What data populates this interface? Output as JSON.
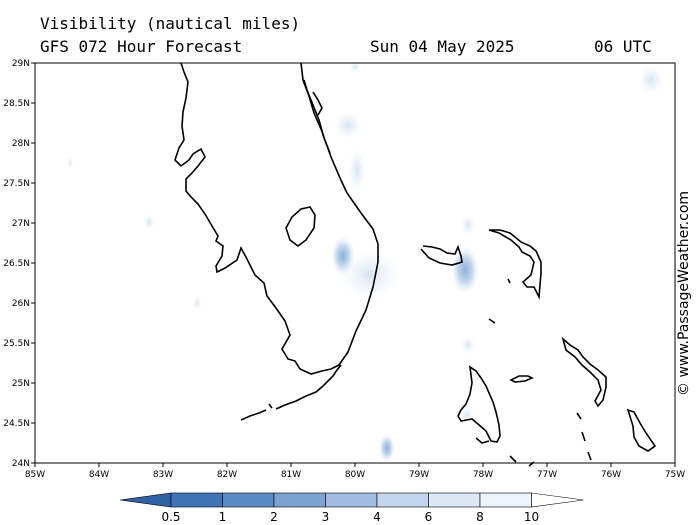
{
  "header": {
    "title": "Visibility (nautical miles)",
    "subtitle": "GFS 072 Hour Forecast",
    "date": "Sun 04 May 2025",
    "time": "06 UTC"
  },
  "credit": "© www.PassageWeather.com",
  "map": {
    "lon_range": [
      -85,
      -75
    ],
    "lat_range": [
      24,
      29
    ],
    "lon_ticks": [
      "85W",
      "84W",
      "83W",
      "82W",
      "81W",
      "80W",
      "79W",
      "78W",
      "77W",
      "76W",
      "75W"
    ],
    "lat_ticks": [
      "29N",
      "28.5N",
      "28N",
      "27.5N",
      "27N",
      "26.5N",
      "26N",
      "25.5N",
      "25N",
      "24.5N",
      "24N"
    ]
  },
  "colorbar": {
    "labels": [
      "0.5",
      "1",
      "2",
      "3",
      "4",
      "6",
      "8",
      "10"
    ],
    "colors": [
      "#3e74b6",
      "#5a8ac5",
      "#7ea3d3",
      "#9fbbe0",
      "#c2d5ec",
      "#dde8f5",
      "#eef4fb",
      "#ffffff"
    ]
  }
}
